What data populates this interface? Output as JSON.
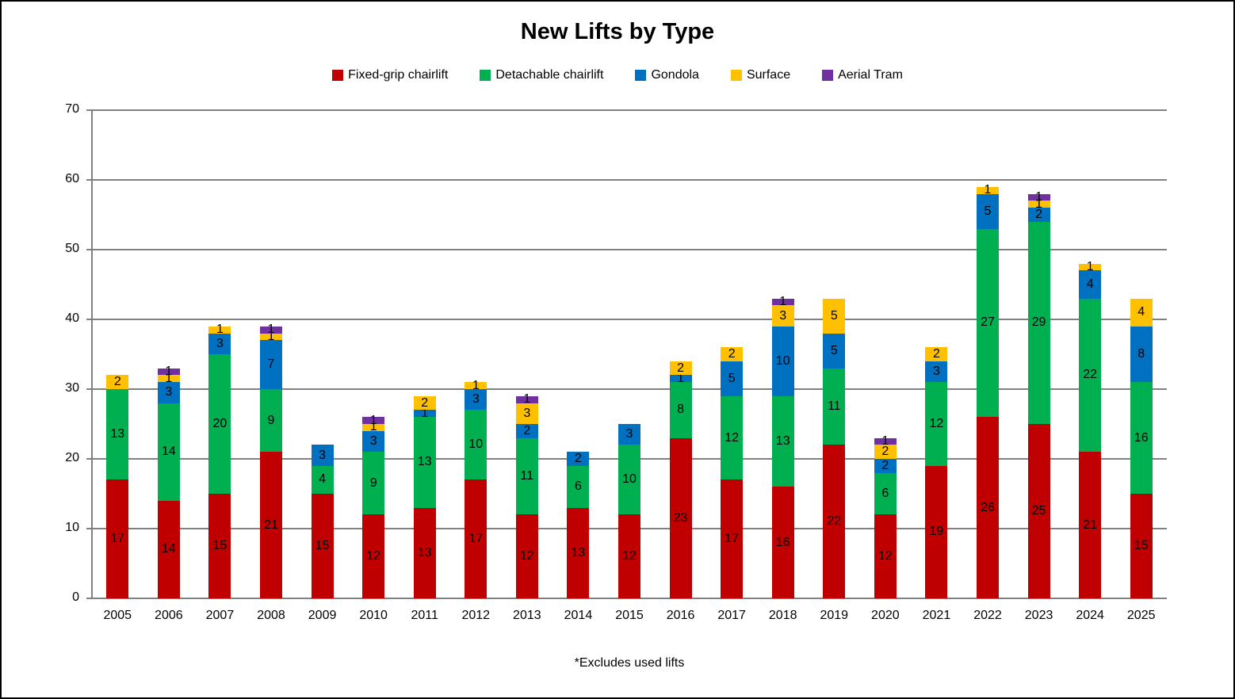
{
  "title": "New Lifts by Type",
  "footnote": "*Excludes used lifts",
  "chart_data": {
    "type": "bar",
    "stacked": true,
    "title": "New Lifts by Type",
    "xlabel": "",
    "ylabel": "",
    "ylim": [
      0,
      70
    ],
    "yticks": [
      0,
      10,
      20,
      30,
      40,
      50,
      60,
      70
    ],
    "grid": true,
    "gridline_color": "#808080",
    "legend_position": "top",
    "data_labels": true,
    "data_label_color": "#000000",
    "categories": [
      "2005",
      "2006",
      "2007",
      "2008",
      "2009",
      "2010",
      "2011",
      "2012",
      "2013",
      "2014",
      "2015",
      "2016",
      "2017",
      "2018",
      "2019",
      "2020",
      "2021",
      "2022",
      "2023",
      "2024",
      "2025"
    ],
    "series": [
      {
        "name": "Fixed-grip chairlift",
        "color": "#C00000",
        "values": [
          17,
          14,
          15,
          21,
          15,
          12,
          13,
          17,
          12,
          13,
          12,
          23,
          17,
          16,
          22,
          12,
          19,
          26,
          25,
          21,
          15
        ]
      },
      {
        "name": "Detachable chairlift",
        "color": "#00B050",
        "values": [
          13,
          14,
          20,
          9,
          4,
          9,
          13,
          10,
          11,
          6,
          10,
          8,
          12,
          13,
          11,
          6,
          12,
          27,
          29,
          22,
          16
        ]
      },
      {
        "name": "Gondola",
        "color": "#0070C0",
        "values": [
          0,
          3,
          3,
          7,
          3,
          3,
          1,
          3,
          2,
          2,
          3,
          1,
          5,
          10,
          5,
          2,
          3,
          5,
          2,
          4,
          8
        ]
      },
      {
        "name": "Surface",
        "color": "#FFC000",
        "values": [
          2,
          1,
          1,
          1,
          0,
          1,
          2,
          1,
          3,
          0,
          0,
          2,
          2,
          3,
          5,
          2,
          2,
          1,
          1,
          1,
          4
        ]
      },
      {
        "name": "Aerial Tram",
        "color": "#7030A0",
        "values": [
          0,
          1,
          0,
          1,
          0,
          1,
          0,
          0,
          1,
          0,
          0,
          0,
          0,
          1,
          0,
          1,
          0,
          0,
          1,
          0,
          0
        ]
      }
    ],
    "totals": [
      32,
      33,
      39,
      39,
      22,
      26,
      29,
      31,
      29,
      21,
      25,
      34,
      36,
      43,
      43,
      23,
      36,
      59,
      58,
      48,
      43
    ]
  }
}
